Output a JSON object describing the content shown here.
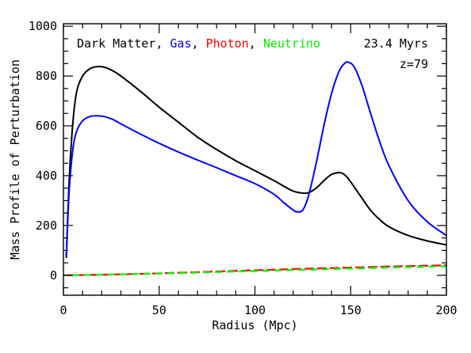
{
  "chart_data": {
    "type": "line",
    "xlabel": "Radius (Mpc)",
    "ylabel": "Mass Profile of Perturbation",
    "xlim": [
      0,
      200
    ],
    "ylim": [
      -80,
      1010
    ],
    "x_ticks": [
      0,
      50,
      100,
      150,
      200
    ],
    "y_ticks": [
      0,
      200,
      400,
      600,
      800,
      1000
    ],
    "x_minor_step": 10,
    "y_minor_step": 50,
    "grid": false,
    "legend": {
      "placement": "top-left",
      "entries": [
        {
          "text": "Dark Matter",
          "color": "#000000"
        },
        {
          "text": "Gas",
          "color": "#0000ff"
        },
        {
          "text": "Photon",
          "color": "#ff0000"
        },
        {
          "text": "Neutrino",
          "color": "#00ff00"
        }
      ]
    },
    "annotations": {
      "time": "23.4 Myrs",
      "redshift": "z=79"
    },
    "series": [
      {
        "key": "dark-matter",
        "color": "#000000",
        "style": "solid",
        "x": [
          1.5,
          3,
          5,
          7,
          10,
          14,
          18,
          22,
          26,
          30,
          40,
          50,
          60,
          70,
          80,
          90,
          100,
          110,
          115,
          120,
          125,
          128,
          132,
          136,
          140,
          144,
          146,
          148,
          150,
          155,
          160,
          165,
          170,
          180,
          190,
          200
        ],
        "y": [
          70,
          380,
          620,
          740,
          800,
          830,
          838,
          834,
          820,
          800,
          740,
          675,
          615,
          555,
          505,
          460,
          420,
          380,
          358,
          338,
          330,
          332,
          350,
          380,
          405,
          412,
          408,
          395,
          375,
          320,
          265,
          225,
          195,
          160,
          138,
          122
        ]
      },
      {
        "key": "gas",
        "color": "#0000ff",
        "style": "solid",
        "x": [
          1.5,
          3,
          5,
          7,
          10,
          14,
          18,
          22,
          26,
          30,
          40,
          50,
          60,
          70,
          80,
          90,
          100,
          110,
          115,
          120,
          122,
          125,
          128,
          132,
          136,
          140,
          144,
          147,
          149,
          152,
          156,
          160,
          165,
          170,
          180,
          190,
          200
        ],
        "y": [
          80,
          340,
          510,
          580,
          620,
          638,
          640,
          636,
          625,
          608,
          568,
          530,
          495,
          463,
          432,
          400,
          368,
          325,
          292,
          262,
          255,
          262,
          320,
          450,
          600,
          730,
          820,
          852,
          855,
          835,
          760,
          660,
          540,
          440,
          300,
          215,
          160
        ]
      },
      {
        "key": "photon",
        "color": "#ff0000",
        "style": "dashed",
        "x": [
          0,
          25,
          50,
          75,
          100,
          125,
          150,
          175,
          200
        ],
        "y": [
          0,
          3,
          8,
          14,
          20,
          26,
          31,
          36,
          40
        ]
      },
      {
        "key": "neutrino",
        "color": "#00ff00",
        "style": "dashed",
        "x": [
          0,
          25,
          50,
          75,
          100,
          125,
          150,
          175,
          200
        ],
        "y": [
          0,
          3,
          7,
          12,
          17,
          22,
          27,
          32,
          36
        ]
      }
    ]
  }
}
